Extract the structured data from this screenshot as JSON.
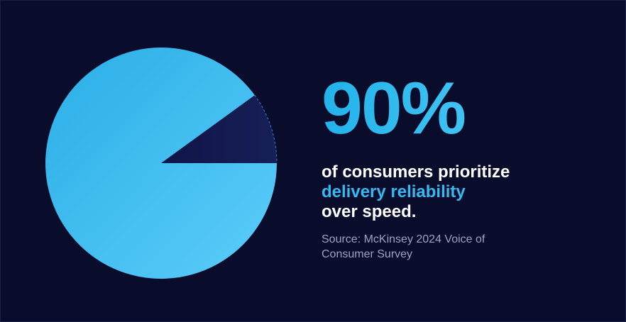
{
  "chart_data": {
    "type": "pie",
    "slices": [
      {
        "value": 90,
        "color": "#45c3f4"
      },
      {
        "value": 10,
        "color": "#141a4e"
      }
    ]
  },
  "headline": {
    "stat": "90%",
    "line1": "of consumers prioritize",
    "highlight": "delivery reliability",
    "line3": "over speed."
  },
  "source": "Source: McKinsey 2024 Voice of Consumer Survey",
  "colors": {
    "background": "#090d2b",
    "accent": "#35b9f0"
  }
}
